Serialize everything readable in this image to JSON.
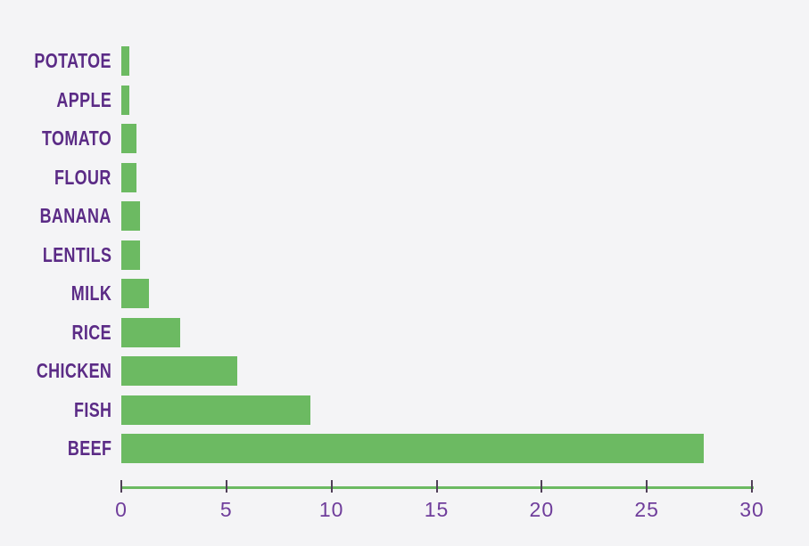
{
  "chart_data": {
    "type": "bar",
    "orientation": "horizontal",
    "title": "",
    "xlabel": "",
    "ylabel": "",
    "categories": [
      "POTATOE",
      "APPLE",
      "TOMATO",
      "FLOUR",
      "BANANA",
      "LENTILS",
      "MILK",
      "RICE",
      "CHICKEN",
      "FISH",
      "BEEF"
    ],
    "values": [
      0.4,
      0.4,
      0.7,
      0.7,
      0.9,
      0.9,
      1.3,
      2.8,
      5.5,
      9.0,
      27.7
    ],
    "xlim": [
      0,
      30
    ],
    "x_ticks": [
      "0",
      "5",
      "10",
      "15",
      "20",
      "25",
      "30"
    ],
    "grid": false,
    "legend_position": "none",
    "colors": {
      "bar": "#6cba62",
      "axis_line": "#6cba62",
      "category_label": "#5b2b86",
      "tick_mark": "#514059",
      "tick_label": "#6f3d9b",
      "background": "#f4f4f6"
    }
  }
}
